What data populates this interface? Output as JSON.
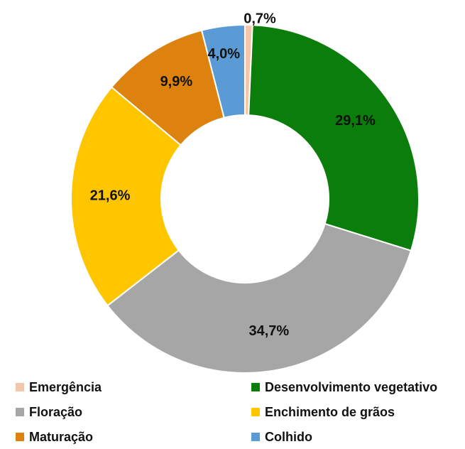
{
  "chart_data": {
    "type": "pie",
    "donut": true,
    "categories": [
      "Emergência",
      "Desenvolvimento vegetativo",
      "Floração",
      "Enchimento de grãos",
      "Maturação",
      "Colhido"
    ],
    "values": [
      0.7,
      29.1,
      34.7,
      21.6,
      9.9,
      4.0
    ],
    "labels": [
      "0,7%",
      "29,1%",
      "34,7%",
      "21,6%",
      "9,9%",
      "4,0%"
    ],
    "colors": [
      "#f4c7ad",
      "#0a7d0a",
      "#a6a6a6",
      "#ffc600",
      "#dd820e",
      "#5b9bd5"
    ],
    "legend_position": "bottom",
    "start_angle": "top, clockwise"
  }
}
